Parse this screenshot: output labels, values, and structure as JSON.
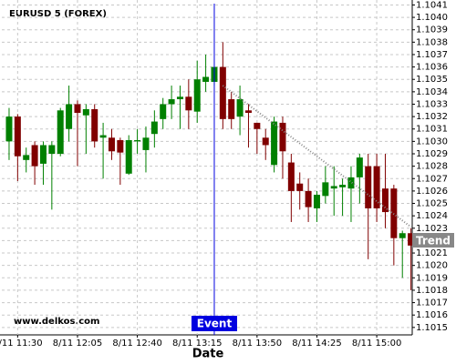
{
  "chart_data": {
    "type": "candlestick",
    "title": "EURUSD 5 (FOREX)",
    "watermark": "www.delkos.com",
    "x_label": "Date",
    "categories": [
      null,
      "8/11 11:30",
      null,
      null,
      null,
      null,
      null,
      null,
      "8/11 12:05",
      null,
      null,
      null,
      null,
      null,
      null,
      "8/11 12:40",
      null,
      null,
      null,
      null,
      null,
      null,
      "8/11 13:15",
      null,
      null,
      null,
      null,
      null,
      null,
      "8/11 13:50",
      null,
      null,
      null,
      null,
      null,
      null,
      "8/11 14:25",
      null,
      null,
      null,
      null,
      null,
      null,
      "8/11 15:00",
      null,
      null,
      null,
      null
    ],
    "open": [
      1.103,
      1.1032,
      1.10285,
      1.10297,
      1.10282,
      1.1029,
      1.1029,
      1.1031,
      1.1033,
      1.10321,
      1.10326,
      1.10303,
      1.10303,
      1.10301,
      1.10274,
      1.103,
      1.10293,
      1.10306,
      1.10318,
      1.1033,
      1.10334,
      1.10336,
      1.10324,
      1.10348,
      1.10348,
      1.1036,
      1.10334,
      1.1032,
      1.10325,
      1.10315,
      1.10303,
      1.10281,
      1.10315,
      1.10283,
      1.10266,
      1.1026,
      1.10246,
      1.10256,
      1.10262,
      1.10263,
      1.10262,
      1.10271,
      1.1028,
      1.1028,
      1.10262,
      1.10262,
      1.10222,
      1.10226
    ],
    "high": [
      1.10327,
      1.10322,
      1.10295,
      1.103,
      1.103,
      1.103,
      1.10327,
      1.10345,
      1.10333,
      1.1033,
      1.1033,
      1.10315,
      1.1031,
      1.10303,
      1.10305,
      1.1031,
      1.10312,
      1.10325,
      1.10335,
      1.10345,
      1.10345,
      1.1035,
      1.10365,
      1.1037,
      1.1036,
      1.1038,
      1.1034,
      1.10345,
      1.1033,
      1.10315,
      1.1031,
      1.1032,
      1.1032,
      1.1029,
      1.10275,
      1.1027,
      1.1026,
      1.1028,
      1.1028,
      1.1027,
      1.1028,
      1.1029,
      1.1029,
      1.1029,
      1.1029,
      1.10265,
      1.10228,
      1.1023
    ],
    "low": [
      1.10285,
      1.10268,
      1.10275,
      1.10265,
      1.10265,
      1.10245,
      1.10288,
      1.103,
      1.1028,
      1.1029,
      1.10295,
      1.1027,
      1.10285,
      1.10265,
      1.10273,
      1.1029,
      1.10275,
      1.10295,
      1.1031,
      1.10318,
      1.1031,
      1.1031,
      1.10315,
      1.1034,
      1.10345,
      1.1031,
      1.1031,
      1.10305,
      1.10295,
      1.1029,
      1.10285,
      1.10275,
      1.1027,
      1.10235,
      1.10245,
      1.10235,
      1.10235,
      1.1025,
      1.1024,
      1.1024,
      1.10235,
      1.1025,
      1.10205,
      1.10235,
      1.1023,
      1.102,
      1.1019,
      1.1018
    ],
    "close": [
      1.1032,
      1.10288,
      1.10289,
      1.1028,
      1.10297,
      1.10297,
      1.10325,
      1.1033,
      1.10323,
      1.10326,
      1.103,
      1.10305,
      1.10292,
      1.10291,
      1.10301,
      1.10301,
      1.10303,
      1.10316,
      1.1033,
      1.10334,
      1.10336,
      1.10325,
      1.1035,
      1.10352,
      1.1036,
      1.10318,
      1.10318,
      1.10334,
      1.10323,
      1.1031,
      1.10297,
      1.10316,
      1.10292,
      1.1026,
      1.1026,
      1.10247,
      1.10257,
      1.10267,
      1.10264,
      1.10265,
      1.10271,
      1.10287,
      1.10246,
      1.10246,
      1.10243,
      1.10222,
      1.10226,
      1.10216
    ],
    "up_color": "#008000",
    "down_color": "#800000",
    "event": {
      "label": "Event",
      "index": 24,
      "color": "#0000e0"
    },
    "trend": {
      "label": "Trend",
      "start_index": 25,
      "end_index": 47,
      "start": 1.10345,
      "end": 1.10231,
      "color": "#888888"
    },
    "ylim": [
      1.10144,
      1.10414
    ],
    "yticks": [
      1.1015,
      1.1016,
      1.1017,
      1.1018,
      1.1019,
      {
        "value": 1.102,
        "label": "1.1020"
      },
      1.1021,
      1.1022,
      1.1023,
      1.1024,
      1.1025,
      1.1026,
      1.1027,
      1.1028,
      1.1029,
      {
        "value": 1.103,
        "label": "1.1030"
      },
      1.1031,
      1.1032,
      1.1033,
      1.1034,
      1.1035,
      1.1036,
      1.1037,
      1.1038,
      1.1039,
      {
        "value": 1.104,
        "label": "1.1040"
      },
      1.1041
    ],
    "grid": true
  }
}
